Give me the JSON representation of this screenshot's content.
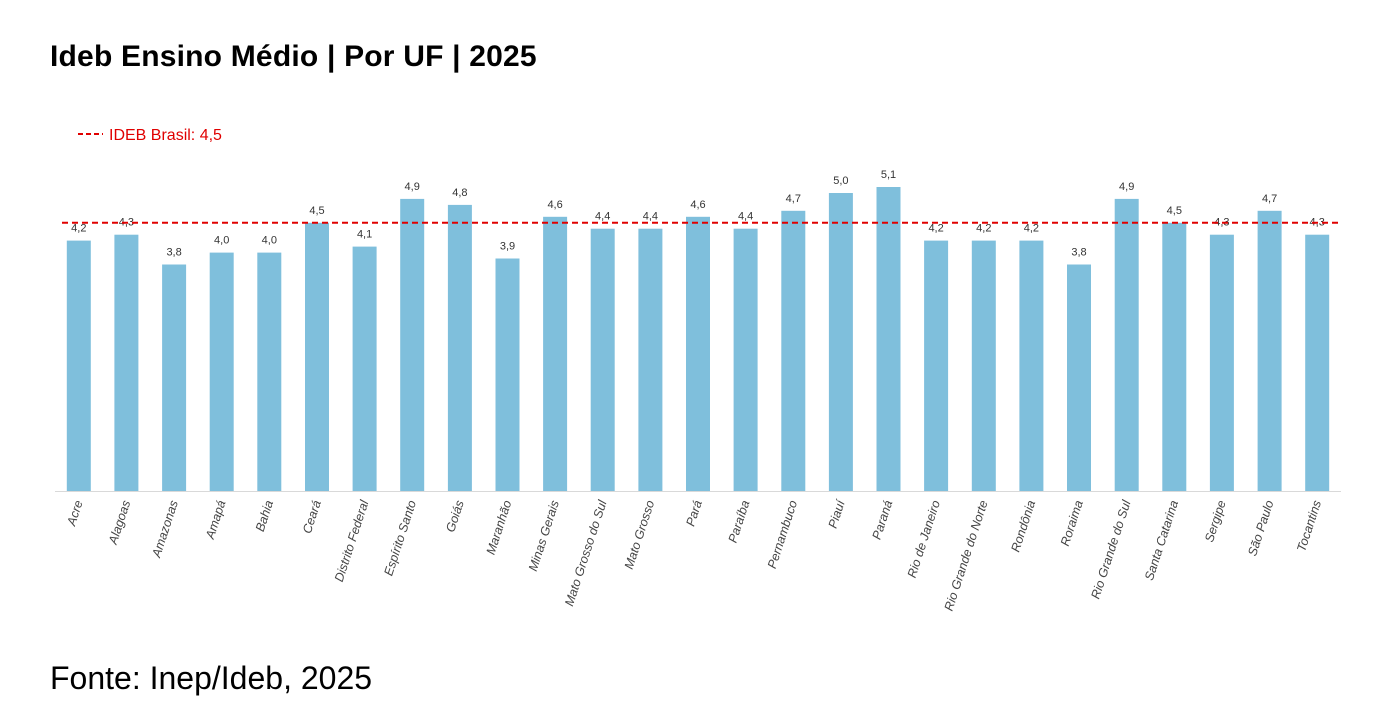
{
  "chart_data": {
    "type": "bar",
    "title": "Ideb Ensino Médio | Por UF | 2025",
    "source": "Fonte: Inep/Ideb, 2025",
    "categories": [
      "Acre",
      "Alagoas",
      "Amazonas",
      "Amapá",
      "Bahia",
      "Ceará",
      "Distrito Federal",
      "Espírito Santo",
      "Goiás",
      "Maranhão",
      "Minas Gerais",
      "Mato Grosso do Sul",
      "Mato Grosso",
      "Pará",
      "Paraíba",
      "Pernambuco",
      "Piauí",
      "Paraná",
      "Rio de Janeiro",
      "Rio Grande do Norte",
      "Rondônia",
      "Roraima",
      "Rio Grande do Sul",
      "Santa Catarina",
      "Sergipe",
      "São Paulo",
      "Tocantins"
    ],
    "values": [
      4.2,
      4.3,
      3.8,
      4.0,
      4.0,
      4.5,
      4.1,
      4.9,
      4.8,
      3.9,
      4.6,
      4.4,
      4.4,
      4.6,
      4.4,
      4.7,
      5.0,
      5.1,
      4.2,
      4.2,
      4.2,
      3.8,
      4.9,
      4.5,
      4.3,
      4.7,
      4.3
    ],
    "value_labels": [
      "4,2",
      "4,3",
      "3,8",
      "4,0",
      "4,0",
      "4,5",
      "4,1",
      "4,9",
      "4,8",
      "3,9",
      "4,6",
      "4,4",
      "4,4",
      "4,6",
      "4,4",
      "4,7",
      "5,0",
      "5,1",
      "4,2",
      "4,2",
      "4,2",
      "3,8",
      "4,9",
      "4,5",
      "4,3",
      "4,7",
      "4,3"
    ],
    "reference_line": {
      "label": "IDEB Brasil: 4,5",
      "value": 4.5,
      "color": "#e00000",
      "style": "dashed"
    },
    "bar_color": "#7fbfdc",
    "axis_line_color": "#d9d9d9",
    "y_axis_visible": false,
    "grid": false,
    "ylim": [
      0,
      5.1
    ],
    "legend_position": "top-left"
  }
}
